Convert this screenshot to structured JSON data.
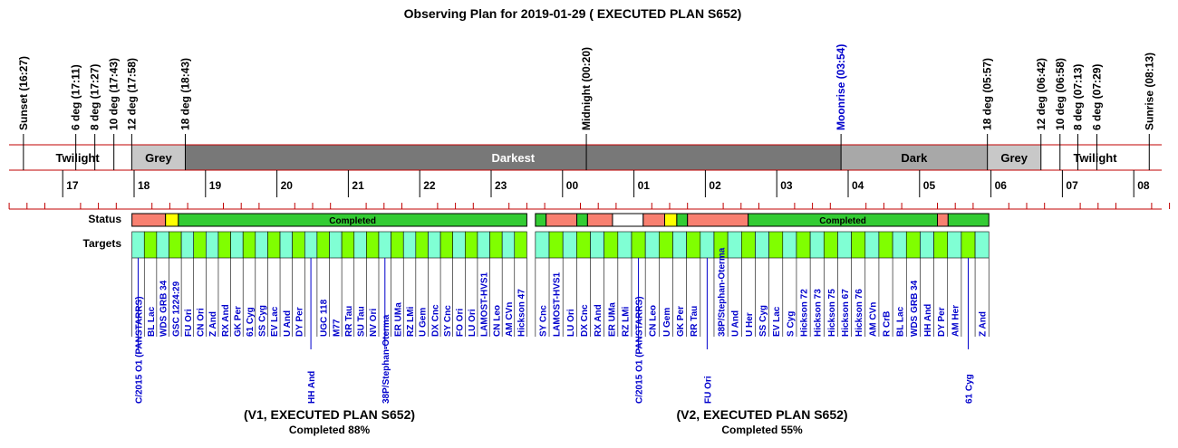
{
  "title": "Observing Plan for 2019-01-29 ( EXECUTED PLAN S652)",
  "chart_data": {
    "type": "timeline",
    "title": "Observing Plan for 2019-01-29 ( EXECUTED PLAN S652)",
    "time_axis": {
      "start_hour": 16.2,
      "end_hour": 32.6,
      "ticks": [
        "17",
        "18",
        "19",
        "20",
        "21",
        "22",
        "23",
        "00",
        "01",
        "02",
        "03",
        "04",
        "05",
        "06",
        "07",
        "08"
      ]
    },
    "events": [
      {
        "label": "Sunset (16:27)",
        "time": "16:27",
        "color": "#000000"
      },
      {
        "label": "6 deg (17:11)",
        "time": "17:11",
        "color": "#000000"
      },
      {
        "label": "8 deg (17:27)",
        "time": "17:27",
        "color": "#000000"
      },
      {
        "label": "10 deg (17:43)",
        "time": "17:43",
        "color": "#000000"
      },
      {
        "label": "12 deg (17:58)",
        "time": "17:58",
        "color": "#000000"
      },
      {
        "label": "18 deg (18:43)",
        "time": "18:43",
        "color": "#000000"
      },
      {
        "label": "Midnight (00:20)",
        "time": "00:20",
        "color": "#000000"
      },
      {
        "label": "Moonrise (03:54)",
        "time": "03:54",
        "color": "#0000cc"
      },
      {
        "label": "18 deg (05:57)",
        "time": "05:57",
        "color": "#000000"
      },
      {
        "label": "12 deg (06:42)",
        "time": "06:42",
        "color": "#000000"
      },
      {
        "label": "10 deg (06:58)",
        "time": "06:58",
        "color": "#000000"
      },
      {
        "label": "8 deg (07:13)",
        "time": "07:13",
        "color": "#000000"
      },
      {
        "label": "6 deg (07:29)",
        "time": "07:29",
        "color": "#000000"
      },
      {
        "label": "Sunrise (08:13)",
        "time": "08:13",
        "color": "#000000"
      }
    ],
    "phases": [
      {
        "label": "Twilight",
        "start": "16:27",
        "end": "17:58",
        "color": "#ffffff",
        "text_color": "#000000"
      },
      {
        "label": "Grey",
        "start": "17:58",
        "end": "18:43",
        "color": "#c8c8c8",
        "text_color": "#000000"
      },
      {
        "label": "Darkest",
        "start": "18:43",
        "end": "03:54",
        "color": "#787878",
        "text_color": "#ffffff"
      },
      {
        "label": "Dark",
        "start": "03:54",
        "end": "05:57",
        "color": "#a8a8a8",
        "text_color": "#000000"
      },
      {
        "label": "Grey",
        "start": "05:57",
        "end": "06:42",
        "color": "#c8c8c8",
        "text_color": "#000000"
      },
      {
        "label": "Twilight",
        "start": "06:42",
        "end": "08:13",
        "color": "#ffffff",
        "text_color": "#000000"
      }
    ],
    "row_labels": {
      "status": "Status",
      "targets": "Targets"
    },
    "status": [
      {
        "start": 17.97,
        "end": 18.44,
        "state": "failed",
        "label": ""
      },
      {
        "start": 18.44,
        "end": 18.62,
        "state": "partial",
        "label": ""
      },
      {
        "start": 18.62,
        "end": 23.5,
        "state": "completed",
        "label": "Completed"
      },
      {
        "start": 23.62,
        "end": 23.77,
        "state": "completed",
        "label": ""
      },
      {
        "start": 23.77,
        "end": 24.2,
        "state": "failed",
        "label": ""
      },
      {
        "start": 24.2,
        "end": 24.35,
        "state": "completed",
        "label": ""
      },
      {
        "start": 24.35,
        "end": 24.7,
        "state": "failed",
        "label": ""
      },
      {
        "start": 24.7,
        "end": 25.13,
        "state": "pending",
        "label": ""
      },
      {
        "start": 25.13,
        "end": 25.43,
        "state": "failed",
        "label": ""
      },
      {
        "start": 25.43,
        "end": 25.6,
        "state": "partial",
        "label": ""
      },
      {
        "start": 25.6,
        "end": 25.75,
        "state": "completed",
        "label": ""
      },
      {
        "start": 25.75,
        "end": 26.6,
        "state": "failed",
        "label": ""
      },
      {
        "start": 26.6,
        "end": 29.25,
        "state": "completed",
        "label": "Completed"
      },
      {
        "start": 29.25,
        "end": 29.4,
        "state": "failed",
        "label": ""
      },
      {
        "start": 29.4,
        "end": 29.97,
        "state": "completed",
        "label": ""
      }
    ],
    "status_colors": {
      "completed": "#33cc33",
      "failed": "#f88070",
      "partial": "#ffff00",
      "pending": "#ffffff"
    },
    "target_colors": [
      "#80ffd4",
      "#80ff00"
    ],
    "plans": [
      {
        "name": "(V1, EXECUTED PLAN S652)",
        "completed": "Completed 88%",
        "start": 17.97,
        "end": 23.5,
        "targets": [
          {
            "name": "C/2015 O1 (PANSTARRS)",
            "low": true
          },
          {
            "name": "BL Lac",
            "low": false
          },
          {
            "name": "WDS GRB 34",
            "low": false
          },
          {
            "name": "GSC 1224:29",
            "low": false
          },
          {
            "name": "FU Ori",
            "low": false
          },
          {
            "name": "CN Ori",
            "low": false
          },
          {
            "name": "Z And",
            "low": false
          },
          {
            "name": "RX And",
            "low": false
          },
          {
            "name": "GK Per",
            "low": false
          },
          {
            "name": "61 Cyg",
            "low": false
          },
          {
            "name": "SS Cyg",
            "low": false
          },
          {
            "name": "EV Lac",
            "low": false
          },
          {
            "name": "U And",
            "low": false
          },
          {
            "name": "DY Per",
            "low": false
          },
          {
            "name": "HH And",
            "low": true
          },
          {
            "name": "UGC 118",
            "low": false
          },
          {
            "name": "M77",
            "low": false
          },
          {
            "name": "RR Tau",
            "low": false
          },
          {
            "name": "SU Tau",
            "low": false
          },
          {
            "name": "NV Ori",
            "low": false
          },
          {
            "name": "38P/Stephan-Oterma",
            "low": true
          },
          {
            "name": "ER UMa",
            "low": false
          },
          {
            "name": "RZ LMi",
            "low": false
          },
          {
            "name": "U Gem",
            "low": false
          },
          {
            "name": "DX Cnc",
            "low": false
          },
          {
            "name": "SY Cnc",
            "low": false
          },
          {
            "name": "FO Ori",
            "low": false
          },
          {
            "name": "LU Ori",
            "low": false
          },
          {
            "name": "LAMOST-HVS1",
            "low": false
          },
          {
            "name": "CN Leo",
            "low": false
          },
          {
            "name": "AM CVn",
            "low": false
          },
          {
            "name": "Hickson 47",
            "low": false
          }
        ]
      },
      {
        "name": "(V2, EXECUTED PLAN S652)",
        "completed": "Completed 55%",
        "start": 23.62,
        "end": 29.97,
        "targets": [
          {
            "name": "SY Cnc",
            "low": false
          },
          {
            "name": "LAMOST-HVS1",
            "low": false
          },
          {
            "name": "LU Ori",
            "low": false
          },
          {
            "name": "DX Cnc",
            "low": false
          },
          {
            "name": "RX And",
            "low": false
          },
          {
            "name": "ER UMa",
            "low": false
          },
          {
            "name": "RZ LMi",
            "low": false
          },
          {
            "name": "C/2015 O1 (PANSTARRS)",
            "low": true
          },
          {
            "name": "CN Leo",
            "low": false
          },
          {
            "name": "U Gem",
            "low": false
          },
          {
            "name": "GK Per",
            "low": false
          },
          {
            "name": "RR Tau",
            "low": false
          },
          {
            "name": "FU Ori",
            "low": true
          },
          {
            "name": "38P/Stephan-Oterma",
            "low": false
          },
          {
            "name": "U And",
            "low": false
          },
          {
            "name": "U Her",
            "low": false
          },
          {
            "name": "SS Cyg",
            "low": false
          },
          {
            "name": "EV Lac",
            "low": false
          },
          {
            "name": "S Cyg",
            "low": false
          },
          {
            "name": "Hickson 72",
            "low": false
          },
          {
            "name": "Hickson 73",
            "low": false
          },
          {
            "name": "Hickson 75",
            "low": false
          },
          {
            "name": "Hickson 67",
            "low": false
          },
          {
            "name": "Hickson 76",
            "low": false
          },
          {
            "name": "AM CVn",
            "low": false
          },
          {
            "name": "R CrB",
            "low": false
          },
          {
            "name": "BL Lac",
            "low": false
          },
          {
            "name": "WDS GRB 34",
            "low": false
          },
          {
            "name": "HH And",
            "low": false
          },
          {
            "name": "DY Per",
            "low": false
          },
          {
            "name": "AM Her",
            "low": false
          },
          {
            "name": "61 Cyg",
            "low": true
          },
          {
            "name": "Z And",
            "low": false
          }
        ]
      }
    ]
  }
}
